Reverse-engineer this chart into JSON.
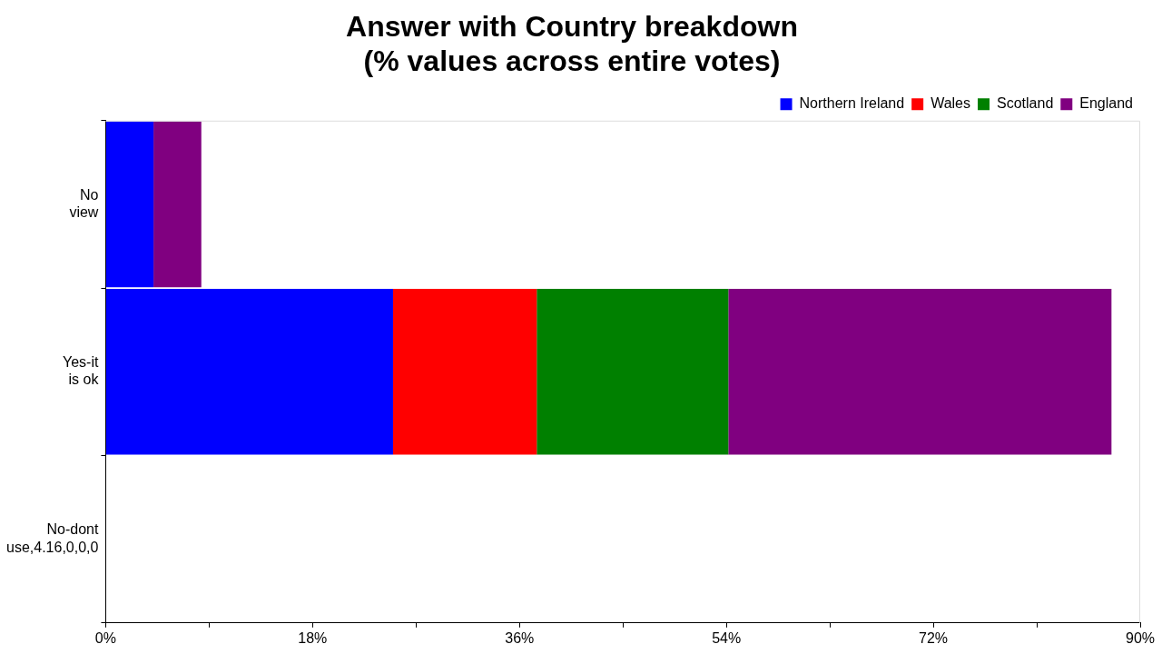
{
  "chart_data": {
    "type": "bar",
    "orientation": "horizontal",
    "stacked": true,
    "title": "Answer with Country breakdown\n(% values across entire votes)",
    "categories": [
      "No view",
      "Yes-it is ok",
      "No-dont use,4.16,0,0,0"
    ],
    "series": [
      {
        "name": "Northern Ireland",
        "color": "#0000ff",
        "values": [
          4.16,
          25,
          0
        ]
      },
      {
        "name": "Wales",
        "color": "#ff0000",
        "values": [
          0,
          12.5,
          0
        ]
      },
      {
        "name": "Scotland",
        "color": "#008000",
        "values": [
          0,
          16.67,
          0
        ]
      },
      {
        "name": "England",
        "color": "#800080",
        "values": [
          4.16,
          33.33,
          0
        ]
      }
    ],
    "xlim": [
      0,
      90
    ],
    "xticks": [
      {
        "value": 0,
        "label": "0%"
      },
      {
        "value": 9,
        "label": null
      },
      {
        "value": 18,
        "label": "18%"
      },
      {
        "value": 27,
        "label": null
      },
      {
        "value": 36,
        "label": "36%"
      },
      {
        "value": 45,
        "label": null
      },
      {
        "value": 54,
        "label": "54%"
      },
      {
        "value": 63,
        "label": null
      },
      {
        "value": 72,
        "label": "72%"
      },
      {
        "value": 81,
        "label": null
      },
      {
        "value": 90,
        "label": "90%"
      }
    ],
    "legend": "top right",
    "grid": false
  }
}
